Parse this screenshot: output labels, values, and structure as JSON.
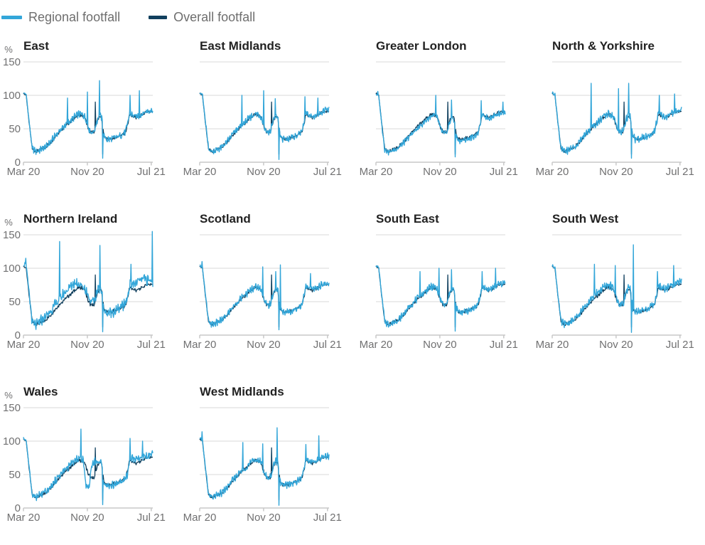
{
  "legend": {
    "items": [
      {
        "label": "Regional footfall",
        "color": "#33A6D9"
      },
      {
        "label": "Overall footfall",
        "color": "#11405E"
      }
    ]
  },
  "chart_data": {
    "type": "line",
    "small_multiples": true,
    "description": "Footfall as a percentage, small multiples by UK region, regional vs overall series, March 2020 to July 2021",
    "x": {
      "tick_labels": [
        "Mar 20",
        "Nov 20",
        "Jul 21"
      ],
      "tick_t": [
        0,
        8,
        16
      ],
      "t_max": 16.2
    },
    "y": {
      "unit_label": "%",
      "min": 0,
      "max": 150,
      "ticks": [
        0,
        50,
        100,
        150
      ],
      "tick_labels": [
        "0",
        "50",
        "100",
        "150"
      ],
      "gridlines": true
    },
    "colors": {
      "regional": "#33A6D9",
      "overall": "#11405E",
      "gridline": "#D9D9D9",
      "axis": "#C8C8C8",
      "tick_text": "#707071",
      "title_text": "#222222"
    },
    "base_anchors": [
      [
        0,
        104
      ],
      [
        0.35,
        101
      ],
      [
        0.7,
        62
      ],
      [
        1.1,
        20
      ],
      [
        1.6,
        16
      ],
      [
        2.2,
        19
      ],
      [
        2.8,
        23
      ],
      [
        3.4,
        30
      ],
      [
        4,
        40
      ],
      [
        4.6,
        48
      ],
      [
        5.2,
        55
      ],
      [
        5.8,
        61
      ],
      [
        6.4,
        68
      ],
      [
        6.9,
        72
      ],
      [
        7.3,
        72
      ],
      [
        7.7,
        68
      ],
      [
        8.1,
        52
      ],
      [
        8.5,
        44
      ],
      [
        8.9,
        47
      ],
      [
        9.2,
        62
      ],
      [
        9.5,
        70
      ],
      [
        9.8,
        67
      ],
      [
        10.05,
        40
      ],
      [
        10.4,
        34
      ],
      [
        11,
        35
      ],
      [
        11.6,
        37
      ],
      [
        12.2,
        40
      ],
      [
        12.8,
        46
      ],
      [
        13.05,
        58
      ],
      [
        13.3,
        73
      ],
      [
        13.7,
        70
      ],
      [
        14.1,
        68
      ],
      [
        14.6,
        70
      ],
      [
        15.1,
        74
      ],
      [
        15.6,
        77
      ],
      [
        16.2,
        78
      ]
    ],
    "overall": {
      "name": "Overall footfall",
      "noise_amp": 3.2,
      "seed": 0,
      "anchors": [
        [
          0,
          103
        ],
        [
          0.35,
          100
        ],
        [
          0.7,
          60
        ],
        [
          1.1,
          20
        ],
        [
          1.6,
          16
        ],
        [
          2.2,
          19
        ],
        [
          2.8,
          23
        ],
        [
          3.4,
          30
        ],
        [
          4,
          39
        ],
        [
          4.6,
          47
        ],
        [
          5.2,
          54
        ],
        [
          5.8,
          60
        ],
        [
          6.4,
          67
        ],
        [
          6.9,
          71
        ],
        [
          7.3,
          71
        ],
        [
          7.7,
          67
        ],
        [
          8.1,
          51
        ],
        [
          8.5,
          44
        ],
        [
          8.9,
          46
        ],
        [
          9.2,
          61
        ],
        [
          9.5,
          69
        ],
        [
          9.8,
          66
        ],
        [
          10.05,
          40
        ],
        [
          10.4,
          34
        ],
        [
          11,
          35
        ],
        [
          11.6,
          37
        ],
        [
          12.2,
          40
        ],
        [
          12.8,
          45
        ],
        [
          13.05,
          57
        ],
        [
          13.3,
          71
        ],
        [
          13.7,
          69
        ],
        [
          14.1,
          67
        ],
        [
          14.6,
          69
        ],
        [
          15.1,
          73
        ],
        [
          15.6,
          76
        ],
        [
          16.2,
          76
        ]
      ],
      "spikes": [
        [
          9.0,
          90
        ],
        [
          9.95,
          12
        ]
      ]
    },
    "regions": [
      {
        "title": "East",
        "seed": 1,
        "noise_amp": 6,
        "anchors": "base",
        "spikes": [
          [
            5.5,
            96
          ],
          [
            8.0,
            105
          ],
          [
            9.5,
            122
          ],
          [
            9.95,
            6
          ],
          [
            13.35,
            100
          ],
          [
            14.5,
            107
          ]
        ]
      },
      {
        "title": "East Midlands",
        "seed": 2,
        "noise_amp": 6,
        "anchors": "base",
        "spikes": [
          [
            5.3,
            100
          ],
          [
            8.0,
            107
          ],
          [
            9.45,
            95
          ],
          [
            9.95,
            4
          ],
          [
            13.2,
            98
          ],
          [
            14.8,
            96
          ]
        ]
      },
      {
        "title": "Greater London",
        "seed": 3,
        "noise_amp": 5,
        "anchors": [
          [
            0,
            102
          ],
          [
            0.35,
            99
          ],
          [
            0.7,
            60
          ],
          [
            1.1,
            19
          ],
          [
            1.6,
            15
          ],
          [
            2.2,
            18
          ],
          [
            2.8,
            22
          ],
          [
            3.4,
            28
          ],
          [
            4,
            36
          ],
          [
            4.6,
            44
          ],
          [
            5.2,
            50
          ],
          [
            5.8,
            57
          ],
          [
            6.4,
            64
          ],
          [
            6.9,
            69
          ],
          [
            7.3,
            70
          ],
          [
            7.7,
            66
          ],
          [
            8.1,
            50
          ],
          [
            8.5,
            42
          ],
          [
            8.9,
            45
          ],
          [
            9.2,
            58
          ],
          [
            9.5,
            66
          ],
          [
            9.8,
            63
          ],
          [
            10.05,
            38
          ],
          [
            10.4,
            32
          ],
          [
            11,
            33
          ],
          [
            11.6,
            35
          ],
          [
            12.2,
            38
          ],
          [
            12.8,
            44
          ],
          [
            13.05,
            56
          ],
          [
            13.3,
            70
          ],
          [
            13.7,
            68
          ],
          [
            14.1,
            66
          ],
          [
            14.6,
            68
          ],
          [
            15.1,
            72
          ],
          [
            15.6,
            74
          ],
          [
            16.2,
            74
          ]
        ],
        "spikes": [
          [
            0.25,
            106
          ],
          [
            7.5,
            100
          ],
          [
            9.45,
            93
          ],
          [
            9.95,
            8
          ],
          [
            13.2,
            92
          ],
          [
            15.9,
            90
          ]
        ]
      },
      {
        "title": "North & Yorkshire",
        "seed": 4,
        "noise_amp": 6.5,
        "anchors": "base",
        "spikes": [
          [
            4.9,
            118
          ],
          [
            8.3,
            110
          ],
          [
            9.6,
            118
          ],
          [
            9.95,
            6
          ],
          [
            13.4,
            100
          ],
          [
            15.3,
            102
          ]
        ]
      },
      {
        "title": "Northern Ireland",
        "seed": 5,
        "noise_amp": 9,
        "anchors": [
          [
            0,
            105
          ],
          [
            0.3,
            108
          ],
          [
            0.7,
            65
          ],
          [
            1.1,
            18
          ],
          [
            1.6,
            15
          ],
          [
            2.2,
            22
          ],
          [
            2.8,
            28
          ],
          [
            3.4,
            36
          ],
          [
            4,
            46
          ],
          [
            4.6,
            55
          ],
          [
            5.2,
            64
          ],
          [
            5.8,
            72
          ],
          [
            6.4,
            78
          ],
          [
            6.9,
            78
          ],
          [
            7.3,
            74
          ],
          [
            7.7,
            70
          ],
          [
            8.1,
            60
          ],
          [
            8.5,
            48
          ],
          [
            8.9,
            52
          ],
          [
            9.2,
            64
          ],
          [
            9.5,
            72
          ],
          [
            9.8,
            66
          ],
          [
            10.05,
            38
          ],
          [
            10.4,
            33
          ],
          [
            11,
            34
          ],
          [
            11.6,
            37
          ],
          [
            12.2,
            41
          ],
          [
            12.8,
            48
          ],
          [
            13.05,
            58
          ],
          [
            13.3,
            74
          ],
          [
            13.7,
            76
          ],
          [
            14.1,
            78
          ],
          [
            14.6,
            82
          ],
          [
            15.1,
            84
          ],
          [
            15.6,
            82
          ],
          [
            16.2,
            80
          ]
        ],
        "spikes": [
          [
            0.3,
            115
          ],
          [
            4.5,
            140
          ],
          [
            9.6,
            134
          ],
          [
            9.95,
            5
          ],
          [
            13.45,
            106
          ],
          [
            16.15,
            155
          ]
        ]
      },
      {
        "title": "Scotland",
        "seed": 6,
        "noise_amp": 6,
        "anchors": "base",
        "spikes": [
          [
            0.3,
            110
          ],
          [
            7.9,
            102
          ],
          [
            9.5,
            95
          ],
          [
            9.95,
            8
          ],
          [
            10.1,
            105
          ],
          [
            13.9,
            92
          ]
        ]
      },
      {
        "title": "South East",
        "seed": 7,
        "noise_amp": 6,
        "anchors": "base",
        "spikes": [
          [
            5.5,
            95
          ],
          [
            7.9,
            100
          ],
          [
            9.45,
            98
          ],
          [
            9.95,
            6
          ],
          [
            13.3,
            95
          ],
          [
            15,
            100
          ]
        ]
      },
      {
        "title": "South West",
        "seed": 8,
        "noise_amp": 6.5,
        "anchors": [
          [
            0,
            104
          ],
          [
            0.35,
            101
          ],
          [
            0.7,
            62
          ],
          [
            1.1,
            20
          ],
          [
            1.6,
            16
          ],
          [
            2.2,
            19
          ],
          [
            2.8,
            23
          ],
          [
            3.4,
            31
          ],
          [
            4,
            42
          ],
          [
            4.6,
            51
          ],
          [
            5.2,
            58
          ],
          [
            5.8,
            65
          ],
          [
            6.4,
            71
          ],
          [
            6.9,
            75
          ],
          [
            7.3,
            74
          ],
          [
            7.7,
            69
          ],
          [
            8.1,
            53
          ],
          [
            8.5,
            45
          ],
          [
            8.9,
            48
          ],
          [
            9.2,
            63
          ],
          [
            9.5,
            71
          ],
          [
            9.8,
            68
          ],
          [
            10.05,
            41
          ],
          [
            10.4,
            35
          ],
          [
            11,
            36
          ],
          [
            11.6,
            38
          ],
          [
            12.2,
            41
          ],
          [
            12.8,
            47
          ],
          [
            13.05,
            59
          ],
          [
            13.3,
            74
          ],
          [
            13.7,
            71
          ],
          [
            14.1,
            69
          ],
          [
            14.6,
            72
          ],
          [
            15.1,
            76
          ],
          [
            15.6,
            79
          ],
          [
            16.2,
            79
          ]
        ],
        "spikes": [
          [
            5.3,
            106
          ],
          [
            7.9,
            104
          ],
          [
            9.95,
            4
          ],
          [
            10.15,
            135
          ],
          [
            13.2,
            95
          ],
          [
            15.2,
            104
          ]
        ]
      },
      {
        "title": "Wales",
        "seed": 9,
        "noise_amp": 6.5,
        "anchors": [
          [
            0,
            104
          ],
          [
            0.35,
            101
          ],
          [
            0.7,
            62
          ],
          [
            1.1,
            20
          ],
          [
            1.6,
            16
          ],
          [
            2.2,
            20
          ],
          [
            2.8,
            24
          ],
          [
            3.4,
            31
          ],
          [
            4,
            41
          ],
          [
            4.6,
            50
          ],
          [
            5.2,
            57
          ],
          [
            5.8,
            64
          ],
          [
            6.4,
            70
          ],
          [
            6.9,
            74
          ],
          [
            7.15,
            76
          ],
          [
            7.5,
            70
          ],
          [
            7.85,
            34
          ],
          [
            8.2,
            30
          ],
          [
            8.55,
            65
          ],
          [
            8.9,
            70
          ],
          [
            9.2,
            68
          ],
          [
            9.5,
            70
          ],
          [
            9.8,
            65
          ],
          [
            10.05,
            40
          ],
          [
            10.4,
            33
          ],
          [
            11,
            34
          ],
          [
            11.6,
            36
          ],
          [
            12.2,
            40
          ],
          [
            12.8,
            44
          ],
          [
            13.05,
            50
          ],
          [
            13.3,
            72
          ],
          [
            13.7,
            74
          ],
          [
            14.1,
            72
          ],
          [
            14.6,
            74
          ],
          [
            15.1,
            76
          ],
          [
            15.6,
            78
          ],
          [
            16.2,
            80
          ]
        ],
        "spikes": [
          [
            7.2,
            118
          ],
          [
            9.95,
            5
          ],
          [
            13.35,
            104
          ],
          [
            14.9,
            100
          ]
        ]
      },
      {
        "title": "West Midlands",
        "seed": 10,
        "noise_amp": 6,
        "anchors": "base",
        "spikes": [
          [
            0.3,
            114
          ],
          [
            5.4,
            98
          ],
          [
            7.9,
            96
          ],
          [
            9.7,
            120
          ],
          [
            9.95,
            4
          ],
          [
            13.3,
            95
          ],
          [
            14.9,
            108
          ]
        ]
      }
    ]
  }
}
